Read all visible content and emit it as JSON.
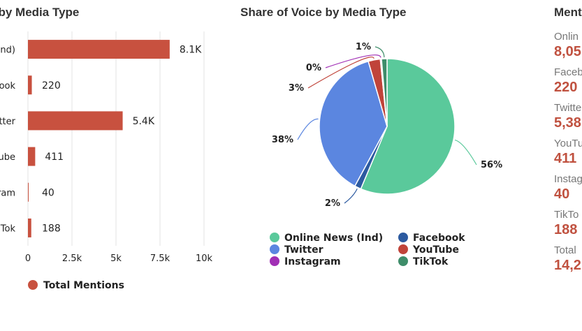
{
  "titles": {
    "bar": "on by Media Type",
    "pie": "Share of Voice by Media Type",
    "stats": "Ment"
  },
  "colors": {
    "bar": "#c8513f",
    "online_news": "#5ac99b",
    "facebook": "#2c5aa0",
    "twitter": "#5b86e0",
    "youtube": "#c0443a",
    "instagram": "#a12fb5",
    "tiktok": "#3e8d6a"
  },
  "chart_data": [
    {
      "type": "bar",
      "orientation": "horizontal",
      "categories": [
        "nd)",
        "ook",
        "tter",
        "ube",
        "ram",
        "Tok"
      ],
      "values": [
        8050,
        220,
        5380,
        411,
        40,
        188
      ],
      "data_labels": [
        "8.1K",
        "220",
        "5.4K",
        "411",
        "40",
        "188"
      ],
      "x_ticks": [
        0,
        2500,
        5000,
        7500,
        10000
      ],
      "x_tick_labels": [
        "0",
        "2.5k",
        "5k",
        "7.5k",
        "10k"
      ],
      "xlim": [
        0,
        10000
      ],
      "grid": true,
      "legend": "bottom-left",
      "series": [
        {
          "name": "Total Mentions",
          "values": [
            8050,
            220,
            5380,
            411,
            40,
            188
          ]
        }
      ]
    },
    {
      "type": "pie",
      "title": "Share of Voice by Media Type",
      "legend": "bottom",
      "slices": [
        {
          "name": "Online News (Ind)",
          "value": 8050,
          "label": "56%",
          "color_key": "online_news"
        },
        {
          "name": "Facebook",
          "value": 220,
          "label": "2%",
          "color_key": "facebook"
        },
        {
          "name": "Twitter",
          "value": 5380,
          "label": "38%",
          "color_key": "twitter"
        },
        {
          "name": "YouTube",
          "value": 411,
          "label": "3%",
          "color_key": "youtube"
        },
        {
          "name": "Instagram",
          "value": 40,
          "label": "0%",
          "color_key": "instagram"
        },
        {
          "name": "TikTok",
          "value": 188,
          "label": "1%",
          "color_key": "tiktok"
        }
      ]
    }
  ],
  "stats": [
    {
      "label": "Onlin",
      "value": "8,05"
    },
    {
      "label": "Faceb",
      "value": "220"
    },
    {
      "label": "Twitte",
      "value": "5,38"
    },
    {
      "label": "YouTu",
      "value": "411"
    },
    {
      "label": "Instag",
      "value": "40"
    },
    {
      "label": "TikTo",
      "value": "188"
    },
    {
      "label": "Total",
      "value": "14,2"
    }
  ]
}
